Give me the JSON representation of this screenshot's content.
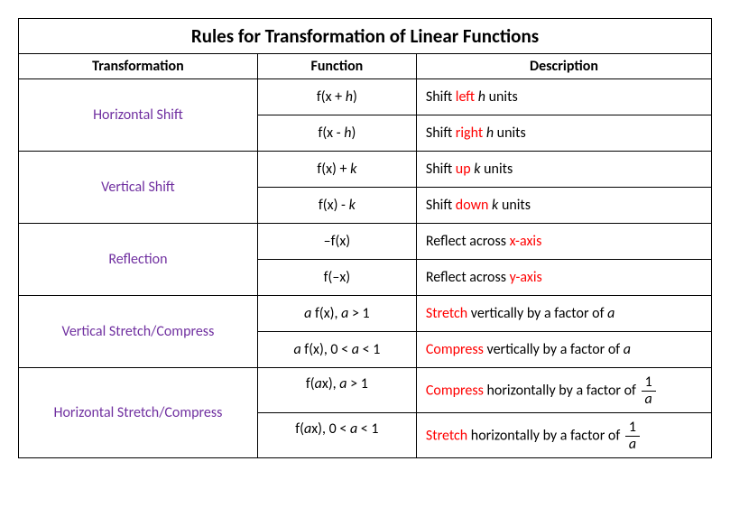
{
  "title": "Rules for Transformation of Linear Functions",
  "headers": {
    "transformation": "Transformation",
    "function": "Function",
    "description": "Description"
  },
  "rows": [
    {
      "transform": "Horizontal Shift",
      "func1_pre": "f(x + ",
      "func1_var": "h",
      "func1_post": ")",
      "desc1_pre": "Shift ",
      "desc1_red": "left",
      "desc1_mid": " ",
      "desc1_var": "h",
      "desc1_post": " units",
      "func2_pre": "f(x  - ",
      "func2_var": "h",
      "func2_post": ")",
      "desc2_pre": "Shift ",
      "desc2_red": "right",
      "desc2_mid": " ",
      "desc2_var": "h",
      "desc2_post": " units"
    },
    {
      "transform": "Vertical Shift",
      "func1_pre": "f(x) + ",
      "func1_var": "k",
      "func1_post": "",
      "desc1_pre": "Shift ",
      "desc1_red": "up",
      "desc1_mid": " ",
      "desc1_var": "k",
      "desc1_post": " units",
      "func2_pre": "f(x) - ",
      "func2_var": "k",
      "func2_post": "",
      "desc2_pre": "Shift ",
      "desc2_red": "down",
      "desc2_mid": " ",
      "desc2_var": "k",
      "desc2_post": " units"
    },
    {
      "transform": "Reflection",
      "func1_full": "–f(x)",
      "desc1_pre": "Reflect across ",
      "desc1_red": "x-axis",
      "func2_full": "f(–x)",
      "desc2_pre": "Reflect across ",
      "desc2_red": "y-axis"
    },
    {
      "transform": "Vertical Stretch/Compress",
      "func1_var1": "a",
      "func1_mid": " f(x), ",
      "func1_var2": "a",
      "func1_post": " > 1",
      "desc1_red": "Stretch",
      "desc1_mid": " vertically by a factor of ",
      "desc1_var": "a",
      "func2_var1": "a",
      "func2_mid": " f(x), 0 < ",
      "func2_var2": "a",
      "func2_post": " < 1",
      "desc2_red": "Compress",
      "desc2_mid": " vertically by a factor of ",
      "desc2_var": "a"
    },
    {
      "transform": "Horizontal Stretch/Compress",
      "func1_pre": "f(",
      "func1_var1": "a",
      "func1_mid": "x), ",
      "func1_var2": "a",
      "func1_post": " > 1",
      "desc1_red": "Compress",
      "desc1_mid": " horizontally by a factor of ",
      "func2_pre": "f(",
      "func2_var1": "a",
      "func2_mid": "x), 0 < ",
      "func2_var2": "a",
      "func2_post": " < 1",
      "desc2_red": "Stretch",
      "desc2_mid": " horizontally by a factor of ",
      "frac_num": "1",
      "frac_den": "a"
    }
  ],
  "colors": {
    "purple": "#7030a0",
    "red": "#ff0000",
    "black": "#000000",
    "background": "#ffffff"
  },
  "fonts": {
    "title_size": 21,
    "header_size": 16,
    "body_size": 16
  }
}
